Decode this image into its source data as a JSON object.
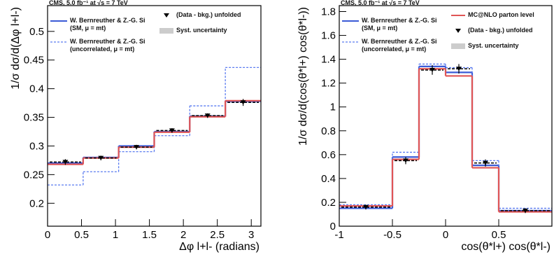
{
  "chart_data": [
    {
      "type": "histogram",
      "header": "CMS, 5.0 fb⁻¹ at √s = 7 TeV",
      "y_label": "1/σ dσ/d(Δφ l+l-)",
      "x_label": "Δφ l+l- (radians)",
      "syst_label": "Syst. uncertainty",
      "bins": [
        0,
        0.524,
        1.047,
        1.571,
        2.094,
        2.618,
        3.142
      ],
      "xlim": [
        0,
        3.142
      ],
      "xticks": [
        0,
        0.5,
        1,
        1.5,
        2,
        2.5,
        3
      ],
      "ylim": [
        0.16,
        0.545
      ],
      "yticks": [
        0.2,
        0.25,
        0.3,
        0.35,
        0.4,
        0.45,
        0.5
      ],
      "series": [
        {
          "name": "W. Bernreuther & Z.-G. Si\n(SM, μ = mt)",
          "style": "solid",
          "color": "#3b5bd6",
          "values": [
            0.27,
            0.28,
            0.3,
            0.325,
            0.352,
            0.378
          ]
        },
        {
          "name": "W. Bernreuther & Z.-G. Si\n(uncorrelated, μ = mt)",
          "style": "dashed",
          "color": "#5a7bf0",
          "values": [
            0.232,
            0.255,
            0.29,
            0.318,
            0.37,
            0.437
          ]
        },
        {
          "style": "solid",
          "color": "#e05555",
          "values": [
            0.268,
            0.279,
            0.298,
            0.324,
            0.351,
            0.379
          ]
        },
        {
          "name": "(Data - bkg.) unfolded",
          "style": "points",
          "color": "#000000",
          "values": [
            0.272,
            0.279,
            0.298,
            0.327,
            0.353,
            0.376
          ],
          "errors": [
            0.005,
            0.004,
            0.004,
            0.004,
            0.004,
            0.006
          ]
        }
      ]
    },
    {
      "type": "histogram",
      "header": "CMS, 5.0 fb⁻¹ at √s = 7 TeV",
      "y_label": "1/σ dσ/d(cos(θ*l+) cos(θ*l-))",
      "x_label": "cos(θ*l+) cos(θ*l-)",
      "syst_label": "Syst. uncertainty",
      "bins": [
        -1,
        -0.5,
        -0.25,
        0,
        0.25,
        0.5,
        1
      ],
      "xlim": [
        -1,
        1
      ],
      "xticks": [
        -1,
        -0.5,
        0,
        0.5
      ],
      "ylim": [
        0,
        1.85
      ],
      "yticks": [
        0,
        0.2,
        0.4,
        0.6,
        0.8,
        1,
        1.2,
        1.4,
        1.6,
        1.8
      ],
      "series": [
        {
          "name": "W. Bernreuther & Z.-G. Si\n(SM, μ = mt)",
          "style": "solid",
          "color": "#3b5bd6",
          "values": [
            0.15,
            0.58,
            1.34,
            1.29,
            0.51,
            0.13
          ]
        },
        {
          "name": "W. Bernreuther & Z.-G. Si\n(uncorrelated, μ = mt)",
          "style": "dashed",
          "color": "#5a7bf0",
          "values": [
            0.18,
            0.62,
            1.36,
            1.33,
            0.55,
            0.15
          ]
        },
        {
          "name": "MC@NLO parton level",
          "style": "solid",
          "color": "#e05555",
          "values": [
            0.17,
            0.56,
            1.32,
            1.26,
            0.49,
            0.12
          ]
        },
        {
          "name": "(Data - bkg.) unfolded",
          "style": "points",
          "color": "#000000",
          "values": [
            0.16,
            0.55,
            1.31,
            1.32,
            0.53,
            0.13
          ],
          "errors": [
            0.02,
            0.03,
            0.04,
            0.04,
            0.03,
            0.02
          ]
        }
      ]
    }
  ]
}
